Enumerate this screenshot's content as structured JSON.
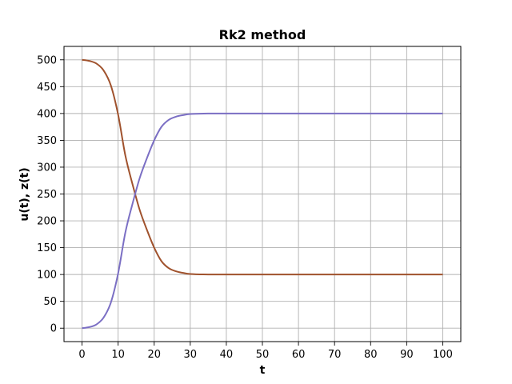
{
  "chart_data": {
    "type": "line",
    "title": "Rk2 method",
    "xlabel": "t",
    "ylabel": "u(t), z(t)",
    "xlim": [
      -5,
      105
    ],
    "ylim": [
      -25,
      525
    ],
    "xticks": [
      0,
      10,
      20,
      30,
      40,
      50,
      60,
      70,
      80,
      90,
      100
    ],
    "yticks": [
      0,
      50,
      100,
      150,
      200,
      250,
      300,
      350,
      400,
      450,
      500
    ],
    "grid": true,
    "series": [
      {
        "color": "#a0522d",
        "x": [
          0,
          2,
          4,
          6,
          8,
          10,
          12,
          14,
          16,
          18,
          20,
          22,
          24,
          26,
          28,
          30,
          35,
          40,
          50,
          60,
          70,
          80,
          90,
          100
        ],
        "y": [
          500,
          498,
          493,
          480,
          452,
          398,
          322,
          268,
          220,
          183,
          150,
          125,
          112,
          106,
          103,
          101,
          100,
          100,
          100,
          100,
          100,
          100,
          100,
          100
        ]
      },
      {
        "color": "#7b6fc4",
        "x": [
          0,
          2,
          4,
          6,
          8,
          10,
          12,
          14,
          16,
          18,
          20,
          22,
          24,
          26,
          28,
          30,
          35,
          40,
          50,
          60,
          70,
          80,
          90,
          100
        ],
        "y": [
          0,
          2,
          7,
          20,
          48,
          102,
          178,
          232,
          280,
          317,
          350,
          375,
          388,
          394,
          397,
          399,
          400,
          400,
          400,
          400,
          400,
          400,
          400,
          400
        ]
      }
    ]
  }
}
